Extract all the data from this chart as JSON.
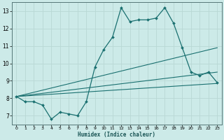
{
  "xlabel": "Humidex (Indice chaleur)",
  "xlim": [
    -0.5,
    23.5
  ],
  "ylim": [
    6.5,
    13.5
  ],
  "yticks": [
    7,
    8,
    9,
    10,
    11,
    12,
    13
  ],
  "xticks": [
    0,
    1,
    2,
    3,
    4,
    5,
    6,
    7,
    8,
    9,
    10,
    11,
    12,
    13,
    14,
    15,
    16,
    17,
    18,
    19,
    20,
    21,
    22,
    23
  ],
  "background_color": "#cceae8",
  "grid_color": "#b8d8d4",
  "line_color": "#1a7070",
  "main_line": {
    "x": [
      0,
      1,
      2,
      3,
      4,
      5,
      6,
      7,
      8,
      9,
      10,
      11,
      12,
      13,
      14,
      15,
      16,
      17,
      18,
      19,
      20,
      21,
      22,
      23
    ],
    "y": [
      8.1,
      7.8,
      7.8,
      7.6,
      6.8,
      7.2,
      7.1,
      7.0,
      7.8,
      9.8,
      10.8,
      11.5,
      13.2,
      12.4,
      12.5,
      12.5,
      12.6,
      13.2,
      12.3,
      10.9,
      9.5,
      9.3,
      9.5,
      8.9
    ]
  },
  "trend_lines": [
    {
      "x": [
        0,
        23
      ],
      "y": [
        8.1,
        10.9
      ]
    },
    {
      "x": [
        0,
        23
      ],
      "y": [
        8.1,
        9.5
      ]
    },
    {
      "x": [
        0,
        23
      ],
      "y": [
        8.1,
        8.85
      ]
    }
  ]
}
